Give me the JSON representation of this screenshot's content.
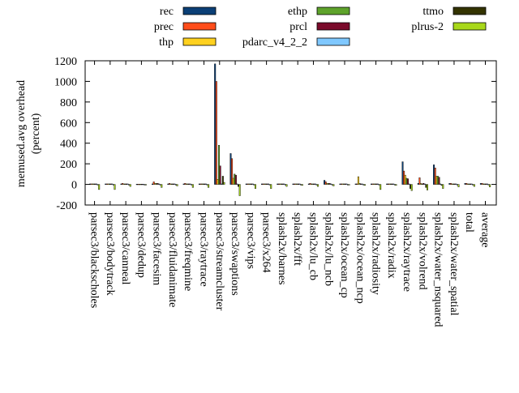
{
  "chart_data": {
    "type": "bar",
    "title": "",
    "xlabel": "",
    "ylabel": "memused.avg overhead\n(percent)",
    "ylim": [
      -200,
      1200
    ],
    "yticks": [
      -200,
      0,
      200,
      400,
      600,
      800,
      1000,
      1200
    ],
    "grid": false,
    "legend_position": "top",
    "categories": [
      "parsec3/blackscholes",
      "parsec3/bodytrack",
      "parsec3/canneal",
      "parsec3/dedup",
      "parsec3/facesim",
      "parsec3/fluidanimate",
      "parsec3/freqmine",
      "parsec3/raytrace",
      "parsec3/streamcluster",
      "parsec3/swaptions",
      "parsec3/vips",
      "parsec3/x264",
      "splash2x/barnes",
      "splash2x/fft",
      "splash2x/lu_cb",
      "splash2x/lu_ncb",
      "splash2x/ocean_cp",
      "splash2x/ocean_ncp",
      "splash2x/radiosity",
      "splash2x/radix",
      "splash2x/raytrace",
      "splash2x/volrend",
      "splash2x/water_nsquared",
      "splash2x/water_spatial",
      "total",
      "average"
    ],
    "series": [
      {
        "name": "rec",
        "color": "#0b3f76",
        "values": [
          5,
          5,
          5,
          3,
          5,
          5,
          5,
          5,
          1170,
          300,
          5,
          5,
          5,
          5,
          5,
          40,
          5,
          5,
          5,
          5,
          220,
          10,
          190,
          10,
          10,
          10
        ]
      },
      {
        "name": "prec",
        "color": "#ff4d1a",
        "values": [
          5,
          5,
          10,
          3,
          25,
          10,
          10,
          5,
          1000,
          250,
          5,
          5,
          5,
          5,
          10,
          25,
          5,
          5,
          5,
          5,
          130,
          65,
          160,
          10,
          10,
          10
        ]
      },
      {
        "name": "thp",
        "color": "#ffd11f",
        "values": [
          5,
          5,
          5,
          3,
          10,
          5,
          5,
          5,
          50,
          60,
          5,
          5,
          5,
          5,
          5,
          10,
          5,
          75,
          5,
          5,
          90,
          10,
          80,
          5,
          5,
          5
        ]
      },
      {
        "name": "ethp",
        "color": "#5ea32b",
        "values": [
          5,
          5,
          5,
          3,
          10,
          5,
          5,
          5,
          380,
          100,
          5,
          5,
          5,
          5,
          5,
          10,
          5,
          10,
          5,
          5,
          60,
          5,
          80,
          5,
          5,
          5
        ]
      },
      {
        "name": "prcl",
        "color": "#7a0a2a",
        "values": [
          5,
          5,
          5,
          3,
          10,
          5,
          5,
          5,
          180,
          90,
          5,
          5,
          5,
          5,
          5,
          10,
          5,
          5,
          5,
          5,
          55,
          10,
          70,
          5,
          5,
          5
        ]
      },
      {
        "name": "pdarc_v4_2_2",
        "color": "#7fc8ff",
        "values": [
          5,
          5,
          5,
          3,
          5,
          5,
          5,
          5,
          5,
          5,
          5,
          5,
          5,
          5,
          5,
          5,
          5,
          5,
          5,
          5,
          5,
          5,
          5,
          5,
          5,
          5
        ]
      },
      {
        "name": "ttmo",
        "color": "#333300",
        "values": [
          -5,
          -5,
          -5,
          -3,
          -5,
          -5,
          -5,
          -5,
          80,
          -20,
          -5,
          -5,
          -5,
          -5,
          -5,
          -5,
          -5,
          -5,
          -5,
          -5,
          -40,
          -30,
          -10,
          -5,
          -5,
          -5
        ]
      },
      {
        "name": "plrus-2",
        "color": "#a8d81a",
        "values": [
          -50,
          -50,
          -20,
          -3,
          -30,
          -15,
          -30,
          -30,
          20,
          -110,
          -40,
          -40,
          -20,
          -10,
          -20,
          -15,
          -5,
          -10,
          -50,
          -10,
          -60,
          -55,
          -40,
          -25,
          -20,
          -25
        ]
      }
    ]
  }
}
